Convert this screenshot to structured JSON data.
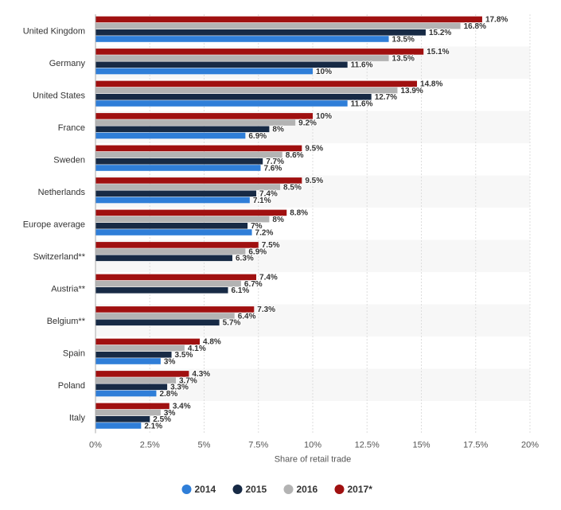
{
  "chart_data": {
    "type": "bar",
    "orientation": "horizontal",
    "xlabel": "Share of retail trade",
    "xlim": [
      0,
      20
    ],
    "xticks": [
      "0%",
      "2.5%",
      "5%",
      "7.5%",
      "10%",
      "12.5%",
      "15%",
      "17.5%",
      "20%"
    ],
    "xtick_values": [
      0,
      2.5,
      5,
      7.5,
      10,
      12.5,
      15,
      17.5,
      20
    ],
    "value_suffix": "%",
    "categories": [
      "United Kingdom",
      "Germany",
      "United States",
      "France",
      "Sweden",
      "Netherlands",
      "Europe average",
      "Switzerland**",
      "Austria**",
      "Belgium**",
      "Spain",
      "Poland",
      "Italy"
    ],
    "series": [
      {
        "name": "2017*",
        "color": "#a01010",
        "values": [
          17.8,
          15.1,
          14.8,
          10,
          9.5,
          9.5,
          8.8,
          7.5,
          7.4,
          7.3,
          4.8,
          4.3,
          3.4
        ]
      },
      {
        "name": "2016",
        "color": "#b3b3b3",
        "values": [
          16.8,
          13.5,
          13.9,
          9.2,
          8.6,
          8.5,
          8,
          6.9,
          6.7,
          6.4,
          4.1,
          3.7,
          3
        ]
      },
      {
        "name": "2015",
        "color": "#172a45",
        "values": [
          15.2,
          11.6,
          12.7,
          8,
          7.7,
          7.4,
          7,
          6.3,
          6.1,
          5.7,
          3.5,
          3.3,
          2.5
        ]
      },
      {
        "name": "2014",
        "color": "#2f7ed8",
        "values": [
          13.5,
          10,
          11.6,
          6.9,
          7.6,
          7.1,
          7.2,
          null,
          null,
          null,
          3,
          2.8,
          2.1
        ]
      }
    ],
    "legend": {
      "placement": "bottom-center",
      "order": [
        "2014",
        "2015",
        "2016",
        "2017*"
      ]
    },
    "grid": true,
    "band_color": "#f7f7f7"
  }
}
